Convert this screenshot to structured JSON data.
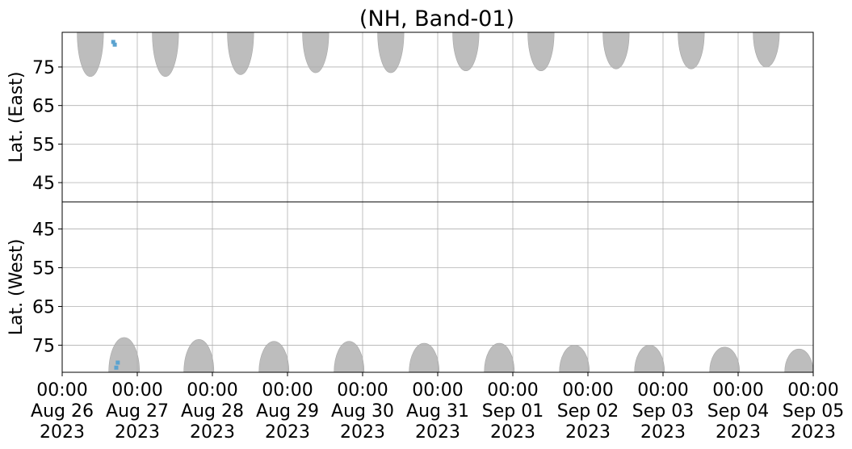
{
  "chart_data": {
    "type": "heatmap",
    "title": "(NH, Band-01)",
    "x_ticks": [
      {
        "day": 0,
        "time": "00:00",
        "date": "Aug 26",
        "year": "2023"
      },
      {
        "day": 1,
        "time": "00:00",
        "date": "Aug 27",
        "year": "2023"
      },
      {
        "day": 2,
        "time": "00:00",
        "date": "Aug 28",
        "year": "2023"
      },
      {
        "day": 3,
        "time": "00:00",
        "date": "Aug 29",
        "year": "2023"
      },
      {
        "day": 4,
        "time": "00:00",
        "date": "Aug 30",
        "year": "2023"
      },
      {
        "day": 5,
        "time": "00:00",
        "date": "Aug 31",
        "year": "2023"
      },
      {
        "day": 6,
        "time": "00:00",
        "date": "Sep 01",
        "year": "2023"
      },
      {
        "day": 7,
        "time": "00:00",
        "date": "Sep 02",
        "year": "2023"
      },
      {
        "day": 8,
        "time": "00:00",
        "date": "Sep 03",
        "year": "2023"
      },
      {
        "day": 9,
        "time": "00:00",
        "date": "Sep 04",
        "year": "2023"
      },
      {
        "day": 10,
        "time": "00:00",
        "date": "Sep 05",
        "year": "2023"
      }
    ],
    "xlim": [
      0,
      10
    ],
    "grid": true,
    "panels": [
      {
        "ylabel": "Lat. (East)",
        "ylim": [
          40,
          84
        ],
        "y_inverted": false,
        "y_ticks": [
          45,
          55,
          65,
          75
        ],
        "coverage_color": "#bdbdbd",
        "coverage": [
          {
            "start": 0.2,
            "end": 0.55,
            "max_lat": 72.5
          },
          {
            "start": 1.2,
            "end": 1.55,
            "max_lat": 72.5
          },
          {
            "start": 2.2,
            "end": 2.55,
            "max_lat": 73.0
          },
          {
            "start": 3.2,
            "end": 3.55,
            "max_lat": 73.5
          },
          {
            "start": 4.2,
            "end": 4.55,
            "max_lat": 73.5
          },
          {
            "start": 5.2,
            "end": 5.55,
            "max_lat": 74.0
          },
          {
            "start": 6.2,
            "end": 6.55,
            "max_lat": 74.0
          },
          {
            "start": 7.2,
            "end": 7.55,
            "max_lat": 74.5
          },
          {
            "start": 8.2,
            "end": 8.55,
            "max_lat": 74.5
          },
          {
            "start": 9.2,
            "end": 9.55,
            "max_lat": 75.0
          }
        ],
        "detections_color": "#5ba3d0",
        "detections": [
          {
            "t": 0.68,
            "lat": 81.5
          },
          {
            "t": 0.7,
            "lat": 80.8
          }
        ]
      },
      {
        "ylabel": "Lat. (West)",
        "ylim": [
          38,
          82
        ],
        "y_inverted": true,
        "y_ticks": [
          75,
          65,
          55,
          45
        ],
        "coverage_color": "#bdbdbd",
        "coverage": [
          {
            "start": 0.62,
            "end": 1.03,
            "max_lat": 73.0
          },
          {
            "start": 1.62,
            "end": 2.02,
            "max_lat": 73.5
          },
          {
            "start": 2.62,
            "end": 3.02,
            "max_lat": 74.0
          },
          {
            "start": 3.62,
            "end": 4.02,
            "max_lat": 74.0
          },
          {
            "start": 4.62,
            "end": 5.02,
            "max_lat": 74.5
          },
          {
            "start": 5.62,
            "end": 6.02,
            "max_lat": 74.5
          },
          {
            "start": 6.62,
            "end": 7.02,
            "max_lat": 75.0
          },
          {
            "start": 7.62,
            "end": 8.02,
            "max_lat": 75.0
          },
          {
            "start": 8.62,
            "end": 9.02,
            "max_lat": 75.5
          },
          {
            "start": 9.62,
            "end": 10.0,
            "max_lat": 76.0
          }
        ],
        "detections_color": "#5ba3d0",
        "detections": [
          {
            "t": 0.72,
            "lat": 80.8
          },
          {
            "t": 0.74,
            "lat": 79.5
          }
        ]
      }
    ]
  }
}
